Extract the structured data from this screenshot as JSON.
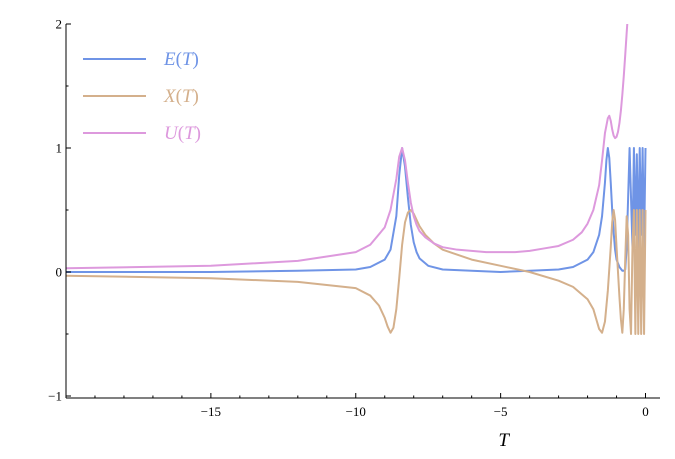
{
  "chart_data": {
    "type": "line",
    "title": "",
    "xlabel": "T",
    "ylabel": "",
    "xlim": [
      -20,
      0.5
    ],
    "ylim": [
      -1,
      2
    ],
    "x_ticks": [
      -15,
      -10,
      -5,
      0
    ],
    "x_tick_labels": [
      "−15",
      "−10",
      "−5",
      "0"
    ],
    "y_ticks": [
      -1,
      0,
      1,
      2
    ],
    "y_tick_labels": [
      "−1",
      "0",
      "1",
      "2"
    ],
    "grid": false,
    "legend_position": "top-left",
    "series": [
      {
        "name": "E(T)",
        "label_main": "E",
        "label_arg": "(T)",
        "color": "#6f94e6",
        "x": [
          -20,
          -15,
          -12,
          -10,
          -9.5,
          -9.0,
          -8.8,
          -8.6,
          -8.5,
          -8.4,
          -8.3,
          -8.2,
          -8.1,
          -8.0,
          -7.9,
          -7.8,
          -7.5,
          -7.0,
          -6.0,
          -5.0,
          -4.0,
          -3.0,
          -2.5,
          -2.0,
          -1.8,
          -1.6,
          -1.5,
          -1.4,
          -1.35,
          -1.3,
          -1.25,
          -1.2,
          -1.15,
          -1.1,
          -1.05,
          -1.0,
          -0.9,
          -0.8,
          -0.75,
          -0.7,
          -0.65,
          -0.6,
          -0.55,
          -0.5,
          -0.45,
          -0.4,
          -0.35,
          -0.3,
          -0.25,
          -0.2,
          -0.15,
          -0.1,
          -0.05,
          0
        ],
        "values": [
          0.0,
          0.0,
          0.01,
          0.02,
          0.04,
          0.1,
          0.18,
          0.45,
          0.78,
          1.0,
          0.85,
          0.6,
          0.38,
          0.24,
          0.16,
          0.11,
          0.05,
          0.02,
          0.01,
          0.0,
          0.01,
          0.02,
          0.04,
          0.1,
          0.16,
          0.3,
          0.45,
          0.72,
          0.9,
          1.0,
          0.92,
          0.72,
          0.5,
          0.32,
          0.18,
          0.1,
          0.04,
          0.01,
          0.01,
          0.02,
          0.2,
          0.6,
          1.0,
          0.6,
          0.2,
          1.0,
          0.3,
          0.95,
          0.2,
          1.0,
          0.3,
          1.0,
          0.2,
          1.0
        ]
      },
      {
        "name": "X(T)",
        "label_main": "X",
        "label_arg": "(T)",
        "color": "#d4b08c",
        "x": [
          -20,
          -15,
          -12,
          -10,
          -9.5,
          -9.2,
          -9.0,
          -8.9,
          -8.8,
          -8.7,
          -8.6,
          -8.5,
          -8.4,
          -8.3,
          -8.2,
          -8.1,
          -8.0,
          -7.9,
          -7.8,
          -7.6,
          -7.3,
          -7.0,
          -6.0,
          -5.0,
          -4.0,
          -3.0,
          -2.5,
          -2.0,
          -1.8,
          -1.7,
          -1.6,
          -1.5,
          -1.4,
          -1.3,
          -1.2,
          -1.15,
          -1.1,
          -1.05,
          -1.0,
          -0.95,
          -0.9,
          -0.85,
          -0.8,
          -0.75,
          -0.7,
          -0.65,
          -0.6,
          -0.55,
          -0.5,
          -0.45,
          -0.4,
          -0.35,
          -0.3,
          -0.25,
          -0.2,
          -0.15,
          -0.1,
          -0.05,
          0
        ],
        "values": [
          -0.03,
          -0.05,
          -0.08,
          -0.13,
          -0.19,
          -0.27,
          -0.37,
          -0.44,
          -0.49,
          -0.45,
          -0.3,
          -0.05,
          0.22,
          0.4,
          0.48,
          0.5,
          0.47,
          0.42,
          0.37,
          0.3,
          0.23,
          0.18,
          0.1,
          0.05,
          0.0,
          -0.07,
          -0.12,
          -0.22,
          -0.3,
          -0.38,
          -0.46,
          -0.49,
          -0.4,
          -0.15,
          0.2,
          0.4,
          0.5,
          0.42,
          0.2,
          0.0,
          -0.2,
          -0.38,
          -0.49,
          -0.3,
          0.1,
          0.45,
          0.3,
          -0.3,
          -0.5,
          0.2,
          0.5,
          -0.5,
          0.5,
          -0.5,
          0.5,
          -0.5,
          0.5,
          -0.5,
          0.5
        ]
      },
      {
        "name": "U(T)",
        "label_main": "U",
        "label_arg": "(T)",
        "color": "#dd99dd",
        "x": [
          -20,
          -15,
          -12,
          -10,
          -9.5,
          -9.0,
          -8.8,
          -8.6,
          -8.5,
          -8.4,
          -8.3,
          -8.2,
          -8.1,
          -8.0,
          -7.9,
          -7.8,
          -7.6,
          -7.3,
          -7.0,
          -6.5,
          -6.0,
          -5.5,
          -5.0,
          -4.5,
          -4.0,
          -3.5,
          -3.0,
          -2.5,
          -2.2,
          -2.0,
          -1.8,
          -1.6,
          -1.5,
          -1.4,
          -1.3,
          -1.25,
          -1.2,
          -1.15,
          -1.1,
          -1.05,
          -1.0,
          -0.95,
          -0.9,
          -0.85,
          -0.8,
          -0.75,
          -0.7,
          -0.65,
          -0.6
        ],
        "values": [
          0.03,
          0.05,
          0.09,
          0.16,
          0.22,
          0.36,
          0.5,
          0.75,
          0.93,
          1.0,
          0.9,
          0.72,
          0.56,
          0.45,
          0.38,
          0.33,
          0.28,
          0.23,
          0.2,
          0.18,
          0.17,
          0.16,
          0.16,
          0.16,
          0.17,
          0.19,
          0.21,
          0.26,
          0.32,
          0.39,
          0.5,
          0.7,
          0.9,
          1.12,
          1.24,
          1.26,
          1.22,
          1.15,
          1.1,
          1.08,
          1.09,
          1.13,
          1.2,
          1.3,
          1.43,
          1.58,
          1.75,
          1.93,
          2.1
        ]
      }
    ]
  }
}
